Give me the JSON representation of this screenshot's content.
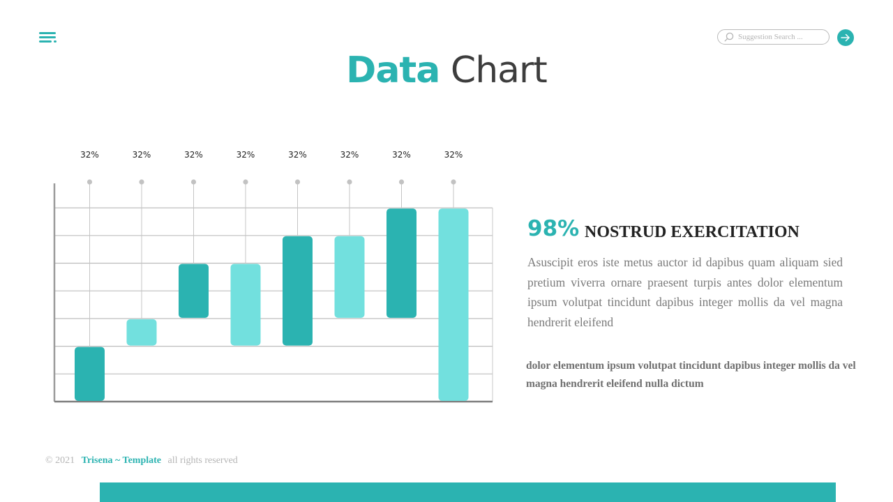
{
  "header": {
    "title_accent": "Data",
    "title_rest": "Chart",
    "search": {
      "placeholder": "Suggestion Search ..."
    }
  },
  "colors": {
    "accent": "#2bb3b1",
    "accent_light": "#72e0de",
    "text_dark": "#3d3d3d"
  },
  "icons": {
    "menu": "hamburger-menu-icon",
    "search": "magnifier-icon",
    "go": "arrow-right-icon"
  },
  "chart_data": {
    "type": "bar",
    "subtype": "floating-range",
    "categories": [
      "",
      "",
      "",
      "",
      "",
      "",
      "",
      ""
    ],
    "data_labels": [
      "32%",
      "32%",
      "32%",
      "32%",
      "32%",
      "32%",
      "32%",
      "32%"
    ],
    "ranges": [
      [
        0,
        2
      ],
      [
        2,
        3
      ],
      [
        3,
        5
      ],
      [
        2,
        5
      ],
      [
        2,
        6
      ],
      [
        3,
        6
      ],
      [
        3,
        7
      ],
      [
        0,
        7
      ]
    ],
    "bar_colors": [
      "#2bb3b1",
      "#72e0de",
      "#2bb3b1",
      "#72e0de",
      "#2bb3b1",
      "#72e0de",
      "#2bb3b1",
      "#72e0de"
    ],
    "ylim": [
      0,
      7
    ],
    "grid": true,
    "legend": "none",
    "title": "",
    "xlabel": "",
    "ylabel": ""
  },
  "stat": {
    "value": "98%",
    "heading": "NOSTRUD EXERCITATION"
  },
  "body_text": "Asuscipit eros iste metus auctor id dapibus quam aliquam sied pretium viverra ornare praesent turpis antes dolor elementum ipsum volutpat tincidunt dapibus integer mollis da vel magna hendrerit eleifend",
  "bold_text": "dolor elementum ipsum volutpat tincidunt dapibus integer mollis da vel magna hendrerit eleifend nulla dictum",
  "footer": {
    "copyright": "© 2021",
    "brand": "Trisena ~ Template",
    "rights": "all rights reserved"
  }
}
